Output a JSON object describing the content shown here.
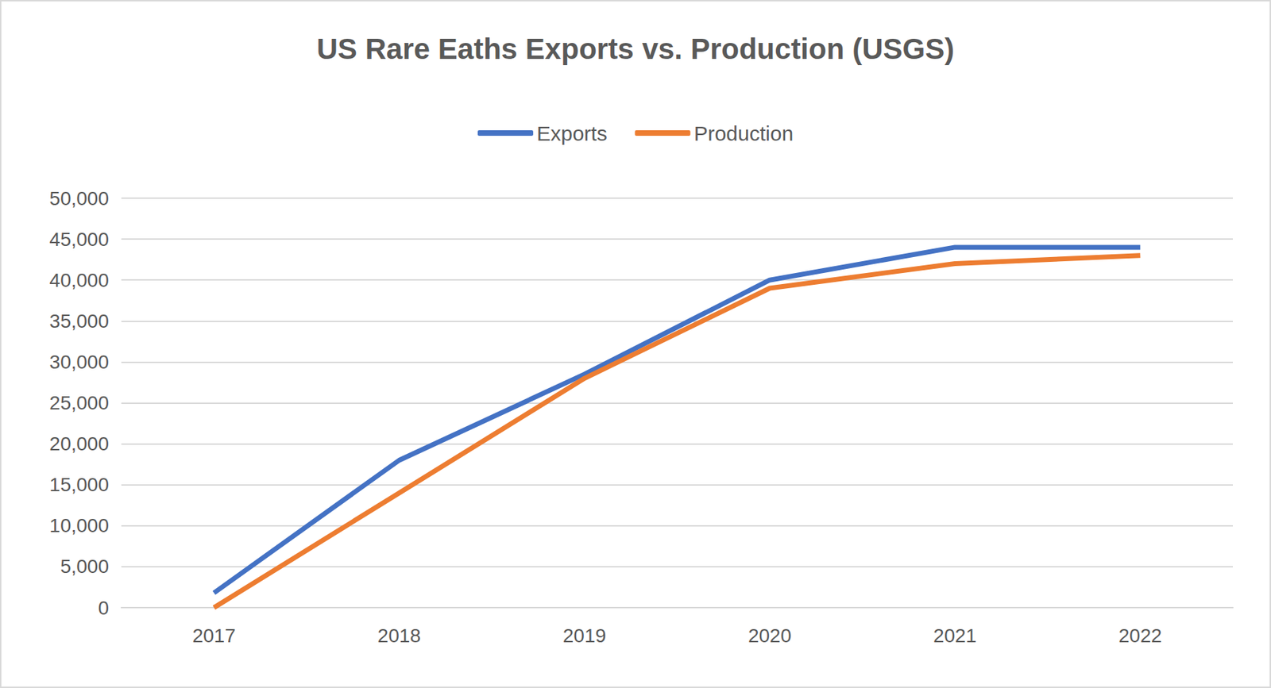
{
  "chart_data": {
    "type": "line",
    "title": "US Rare Eaths Exports vs. Production (USGS)",
    "categories": [
      "2017",
      "2018",
      "2019",
      "2020",
      "2021",
      "2022"
    ],
    "series": [
      {
        "name": "Exports",
        "color": "#4472c4",
        "values": [
          1800,
          18000,
          28500,
          40000,
          44000,
          44000
        ]
      },
      {
        "name": "Production",
        "color": "#ed7d31",
        "values": [
          0,
          14000,
          28000,
          39000,
          42000,
          43000
        ]
      }
    ],
    "ylim": [
      0,
      50000
    ],
    "yticks": [
      0,
      {
        "value": 5000,
        "label": "5,000"
      },
      {
        "value": 10000,
        "label": "10,000"
      },
      {
        "value": 15000,
        "label": "15,000"
      },
      {
        "value": 20000,
        "label": "20,000"
      },
      {
        "value": 25000,
        "label": "25,000"
      },
      {
        "value": 30000,
        "label": "30,000"
      },
      {
        "value": 35000,
        "label": "35,000"
      },
      {
        "value": 40000,
        "label": "40,000"
      },
      {
        "value": 45000,
        "label": "45,000"
      },
      {
        "value": 50000,
        "label": "50,000"
      }
    ],
    "grid": true,
    "legend": "top",
    "marker": "none"
  }
}
